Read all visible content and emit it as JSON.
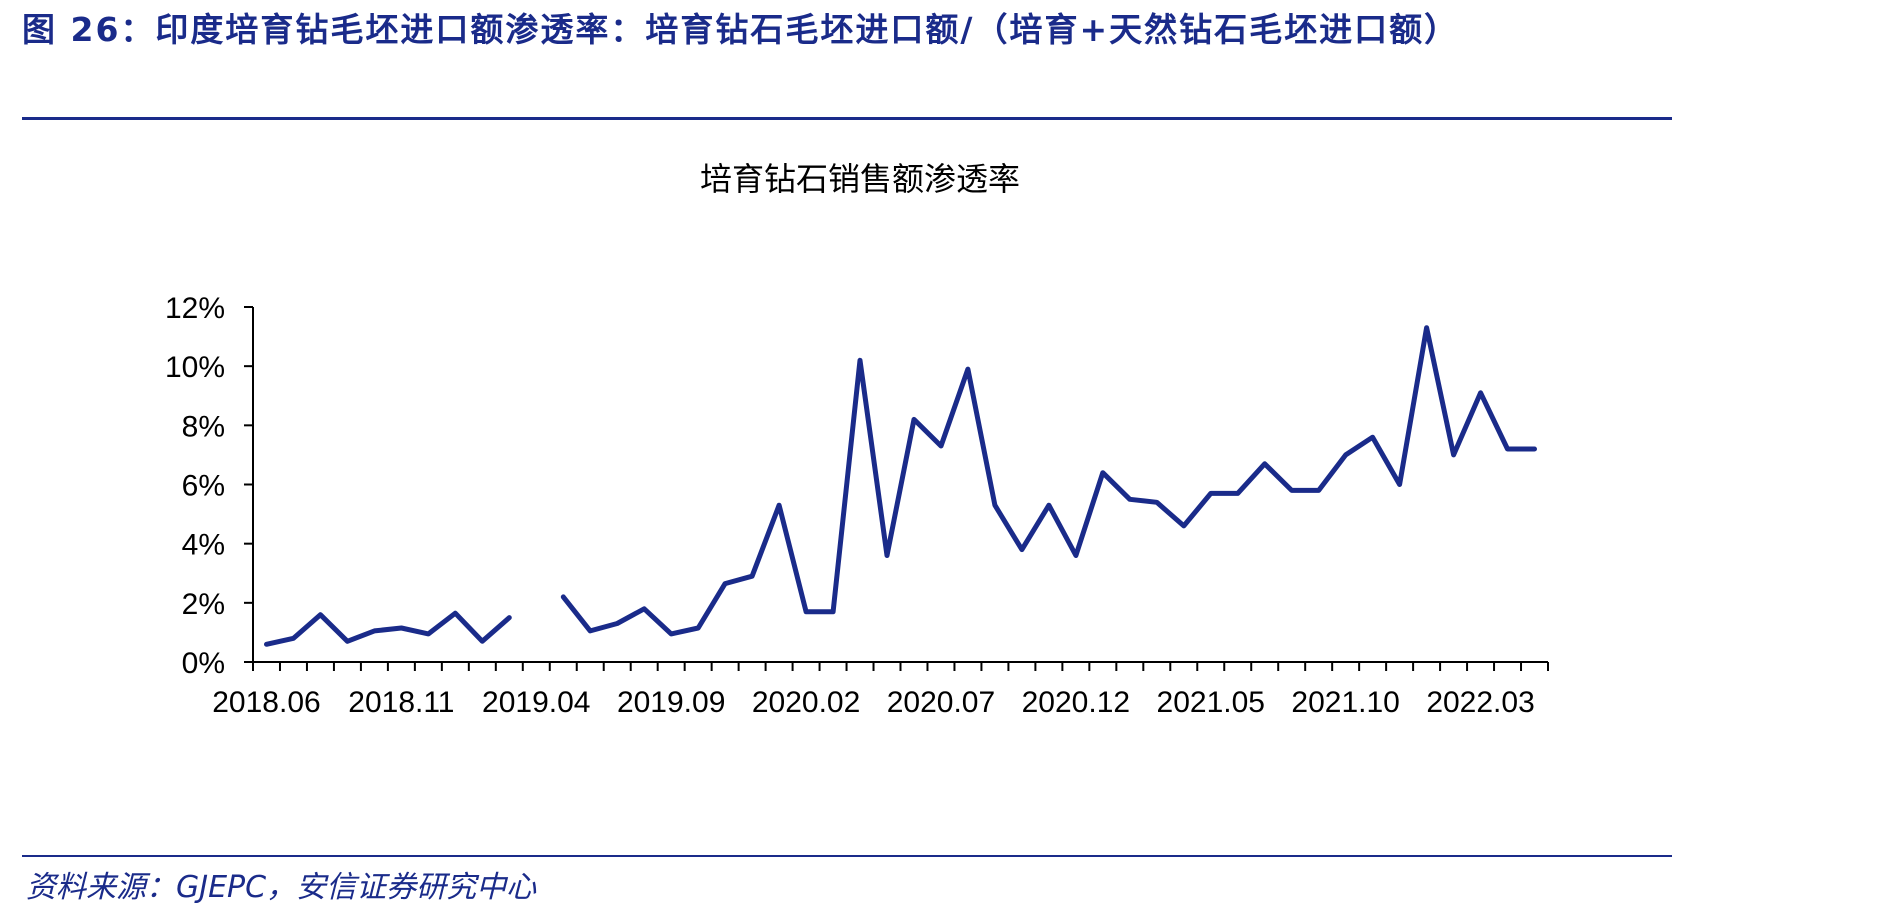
{
  "figure": {
    "title": "图 26：印度培育钻毛坯进口额渗透率：培育钻石毛坯进口额/（培育+天然钻石毛坯进口额）",
    "source": "资料来源：GJEPC，安信证券研究中心"
  },
  "colors": {
    "line": "#1a2b8a",
    "accent": "#1a2b8a",
    "text": "#000000"
  },
  "chart_data": {
    "type": "line",
    "title": "培育钻石销售额渗透率",
    "x": [
      "2018.06",
      "2018.07",
      "2018.08",
      "2018.09",
      "2018.10",
      "2018.11",
      "2018.12",
      "2019.01",
      "2019.02",
      "2019.03",
      "2019.04",
      "2019.05",
      "2019.06",
      "2019.07",
      "2019.08",
      "2019.09",
      "2019.10",
      "2019.11",
      "2019.12",
      "2020.01",
      "2020.02",
      "2020.03",
      "2020.04",
      "2020.05",
      "2020.06",
      "2020.07",
      "2020.08",
      "2020.09",
      "2020.10",
      "2020.11",
      "2020.12",
      "2021.01",
      "2021.02",
      "2021.03",
      "2021.04",
      "2021.05",
      "2021.06",
      "2021.07",
      "2021.08",
      "2021.09",
      "2021.10",
      "2021.11",
      "2021.12",
      "2022.01",
      "2022.02",
      "2022.03",
      "2022.04",
      "2022.05"
    ],
    "tick_labels": [
      "2018.06",
      "2018.11",
      "2019.04",
      "2019.09",
      "2020.02",
      "2020.07",
      "2020.12",
      "2021.05",
      "2021.10",
      "2022.03"
    ],
    "y_tick_labels": [
      "0%",
      "2%",
      "4%",
      "6%",
      "8%",
      "10%",
      "12%"
    ],
    "y_ticks": [
      0,
      2,
      4,
      6,
      8,
      10,
      12
    ],
    "ylim": [
      0,
      12
    ],
    "y_unit": "%",
    "series": [
      {
        "values": [
          0.6,
          0.8,
          1.6,
          0.7,
          1.05,
          1.15,
          0.95,
          1.65,
          0.7,
          1.5,
          null,
          2.2,
          1.05,
          1.3,
          1.8,
          0.95,
          1.15,
          2.65,
          2.9,
          5.3,
          1.7,
          1.7,
          10.2,
          3.6,
          8.2,
          7.3,
          9.9,
          5.3,
          3.8,
          5.3,
          3.6,
          6.4,
          5.5,
          5.4,
          4.6,
          5.7,
          5.7,
          6.7,
          5.8,
          5.8,
          7.0,
          7.6,
          6.0,
          11.3,
          7.0,
          9.1,
          7.2,
          7.2
        ],
        "color": "#1a2b8a"
      }
    ],
    "grid": false,
    "legend": "none"
  }
}
